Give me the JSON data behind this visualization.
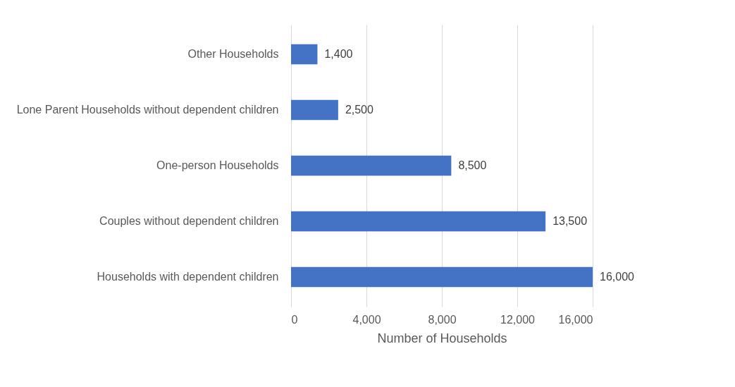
{
  "chart_data": {
    "type": "bar",
    "orientation": "horizontal",
    "categories": [
      "Other Households",
      "Lone Parent Households without dependent children",
      "One-person Households",
      "Couples without dependent children",
      "Households with dependent children"
    ],
    "values": [
      1400,
      2500,
      8500,
      13500,
      16000
    ],
    "value_labels": [
      "1,400",
      "2,500",
      "8,500",
      "13,500",
      "16,000"
    ],
    "color": "#4472c4",
    "xlabel": "Number of Households",
    "xlim": [
      0,
      16000
    ],
    "xticks": [
      0,
      {
        "value": 4000,
        "label": "4,000"
      },
      {
        "value": 8000,
        "label": "8,000"
      },
      {
        "value": 12000,
        "label": "12,000"
      },
      {
        "value": 16000,
        "label": "16,000"
      }
    ],
    "grid": "x"
  }
}
